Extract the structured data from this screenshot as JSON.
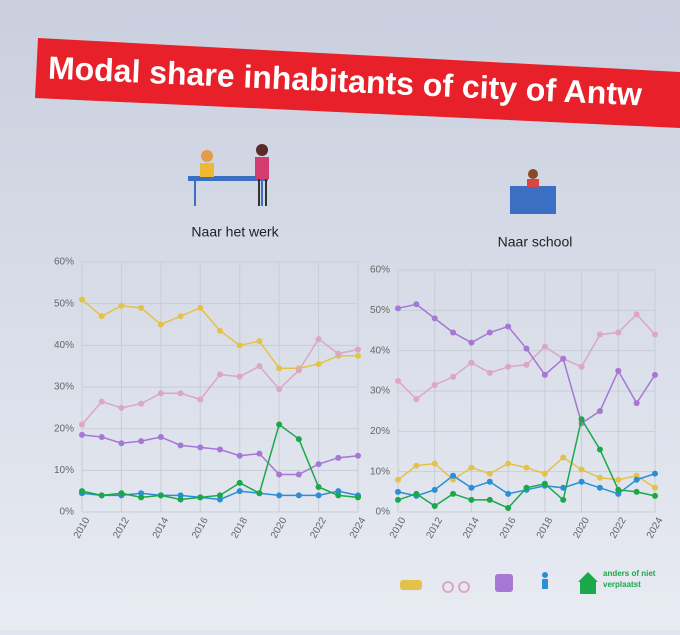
{
  "title": "Modal share inhabitants of city of Antw",
  "legend_note": "anders of niet verplaatst",
  "chart_data": [
    {
      "type": "line",
      "title": "Naar het werk",
      "x": [
        2010,
        2011,
        2012,
        2013,
        2014,
        2015,
        2016,
        2017,
        2018,
        2019,
        2020,
        2021,
        2022,
        2023,
        2024
      ],
      "xlim": [
        2010,
        2024
      ],
      "xticks": [
        2010,
        2012,
        2014,
        2016,
        2018,
        2020,
        2022,
        2024
      ],
      "ylim": [
        0,
        60
      ],
      "yticks": [
        {
          "value": 0,
          "label": "0%"
        },
        {
          "value": 10,
          "label": "10%"
        },
        {
          "value": 20,
          "label": "20%"
        },
        {
          "value": 30,
          "label": "30%"
        },
        {
          "value": 40,
          "label": "40%"
        },
        {
          "value": 50,
          "label": "50%"
        },
        {
          "value": 60,
          "label": "60%"
        }
      ],
      "grid": true,
      "series": [
        {
          "color": "#e4c24a",
          "values": [
            51,
            47,
            49.5,
            49,
            45,
            47,
            49,
            43.5,
            40,
            41,
            34.5,
            34.5,
            35.5,
            37.5,
            37.5
          ]
        },
        {
          "color": "#dca6c4",
          "values": [
            21,
            26.5,
            25,
            26,
            28.5,
            28.5,
            27,
            33,
            32.5,
            35,
            29.5,
            34,
            41.5,
            38,
            39
          ]
        },
        {
          "color": "#a677d4",
          "values": [
            18.5,
            18,
            16.5,
            17,
            18,
            16,
            15.5,
            15,
            13.5,
            14,
            9,
            9,
            11.5,
            13,
            13.5
          ]
        },
        {
          "color": "#2a8fd6",
          "values": [
            4.5,
            4,
            4,
            4.5,
            4,
            4,
            3.5,
            3,
            5,
            4.5,
            4,
            4,
            4,
            5,
            4
          ]
        },
        {
          "color": "#1aa84a",
          "values": [
            5,
            4,
            4.5,
            3.5,
            4,
            3,
            3.5,
            4,
            7,
            4.5,
            21,
            17.5,
            6,
            4,
            3.5
          ]
        }
      ]
    },
    {
      "type": "line",
      "title": "Naar school",
      "x": [
        2010,
        2011,
        2012,
        2013,
        2014,
        2015,
        2016,
        2017,
        2018,
        2019,
        2020,
        2021,
        2022,
        2023,
        2024
      ],
      "xlim": [
        2010,
        2024
      ],
      "xticks": [
        2010,
        2012,
        2014,
        2016,
        2018,
        2020,
        2022,
        2024
      ],
      "ylim": [
        0,
        60
      ],
      "yticks": [
        {
          "value": 0,
          "label": "0%"
        },
        {
          "value": 10,
          "label": "10%"
        },
        {
          "value": 20,
          "label": "20%"
        },
        {
          "value": 30,
          "label": "30%"
        },
        {
          "value": 40,
          "label": "40%"
        },
        {
          "value": 50,
          "label": "50%"
        },
        {
          "value": 60,
          "label": "60%"
        }
      ],
      "grid": true,
      "series": [
        {
          "color": "#e4c24a",
          "values": [
            8,
            11.5,
            12,
            8,
            11,
            9.5,
            12,
            11,
            9.5,
            13.5,
            10.5,
            8.5,
            8,
            9,
            6
          ]
        },
        {
          "color": "#dca6c4",
          "values": [
            32.5,
            28,
            31.5,
            33.5,
            37,
            34.5,
            36,
            36.5,
            41,
            38,
            36,
            44,
            44.5,
            49,
            44
          ]
        },
        {
          "color": "#a677d4",
          "values": [
            50.5,
            51.5,
            48,
            44.5,
            42,
            44.5,
            46,
            40.5,
            34,
            38,
            22,
            25,
            35,
            27,
            34
          ]
        },
        {
          "color": "#2a8fd6",
          "values": [
            5,
            4,
            5.5,
            9,
            6,
            7.5,
            4.5,
            5.5,
            6.5,
            6,
            7.5,
            6,
            4.5,
            8,
            9.5
          ]
        },
        {
          "color": "#1aa84a",
          "values": [
            3,
            4.5,
            1.5,
            4.5,
            3,
            3,
            1,
            6,
            7,
            3,
            23,
            15.5,
            5.5,
            5,
            4
          ]
        }
      ]
    }
  ]
}
